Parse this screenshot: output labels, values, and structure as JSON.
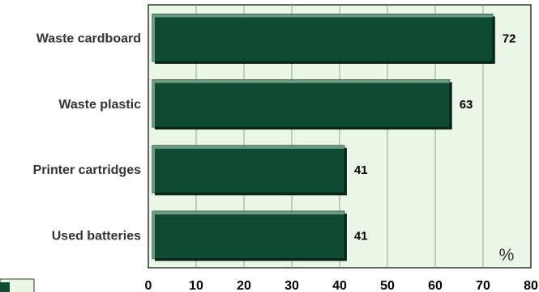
{
  "chart_data": {
    "type": "bar",
    "orientation": "horizontal",
    "categories": [
      "Waste cardboard",
      "Waste plastic",
      "Printer cartridges",
      "Used batteries"
    ],
    "values": [
      72,
      63,
      41,
      41
    ],
    "value_labels": [
      "72",
      "63",
      "41",
      "41"
    ],
    "xlim": [
      0,
      80
    ],
    "xticks": [
      "0",
      "10",
      "20",
      "30",
      "40",
      "50",
      "60",
      "70",
      "80"
    ],
    "unit": "%",
    "grid": "vertical",
    "legend": "none",
    "colors": {
      "bar": "#0f4a32",
      "bar_top_highlight": "#6d9a84",
      "bar_shadow": "#0a2419",
      "plot_background": "#ecf6e6",
      "grid": "#8fa889",
      "axis": "#2a3a2a"
    }
  }
}
